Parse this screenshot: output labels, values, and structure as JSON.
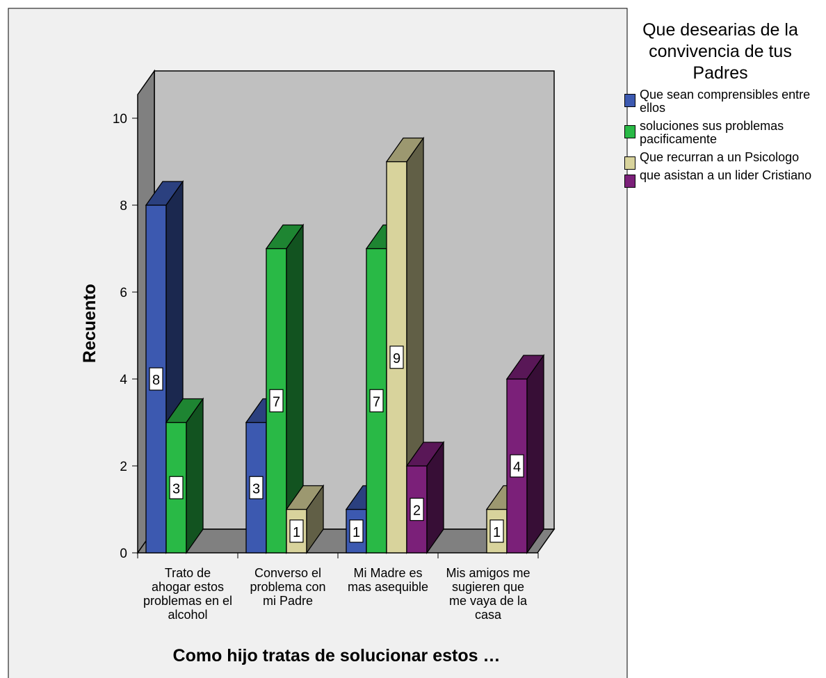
{
  "chart_data": {
    "type": "bar",
    "title": "",
    "xlabel": "Como hijo tratas de solucionar estos …",
    "ylabel": "Recuento",
    "ylim": [
      0,
      10
    ],
    "yticks": [
      "0",
      "2",
      "4",
      "6",
      "8",
      "10"
    ],
    "categories": [
      [
        "Trato de",
        "ahogar estos",
        "problemas en el",
        "alcohol"
      ],
      [
        "Converso el",
        "problema con",
        "mi Padre"
      ],
      [
        "Mi Madre es",
        "mas asequible"
      ],
      [
        "Mis amigos me",
        "sugieren que",
        "me vaya de la",
        "casa"
      ]
    ],
    "legend_title": "Que desearias de la convivencia de tus Padres",
    "legend_title_lines": [
      "Que desearias de la",
      "convivencia de tus",
      "Padres"
    ],
    "series": [
      {
        "name": "Que sean comprensibles entre ellos",
        "color": "#3c59b0",
        "values": [
          8,
          3,
          1,
          0
        ]
      },
      {
        "name": "soluciones sus problemas pacificamente",
        "color": "#29b946",
        "values": [
          3,
          7,
          7,
          0
        ]
      },
      {
        "name": "Que recurran a un Psicologo",
        "color": "#d8d39c",
        "values": [
          0,
          1,
          9,
          1
        ]
      },
      {
        "name": "que asistan a un lider Cristiano",
        "color": "#7b2079",
        "values": [
          0,
          0,
          2,
          4
        ]
      }
    ],
    "data_labels": true,
    "chart_style": "3d-clustered-bar",
    "grid": false,
    "legend_position": "right"
  }
}
